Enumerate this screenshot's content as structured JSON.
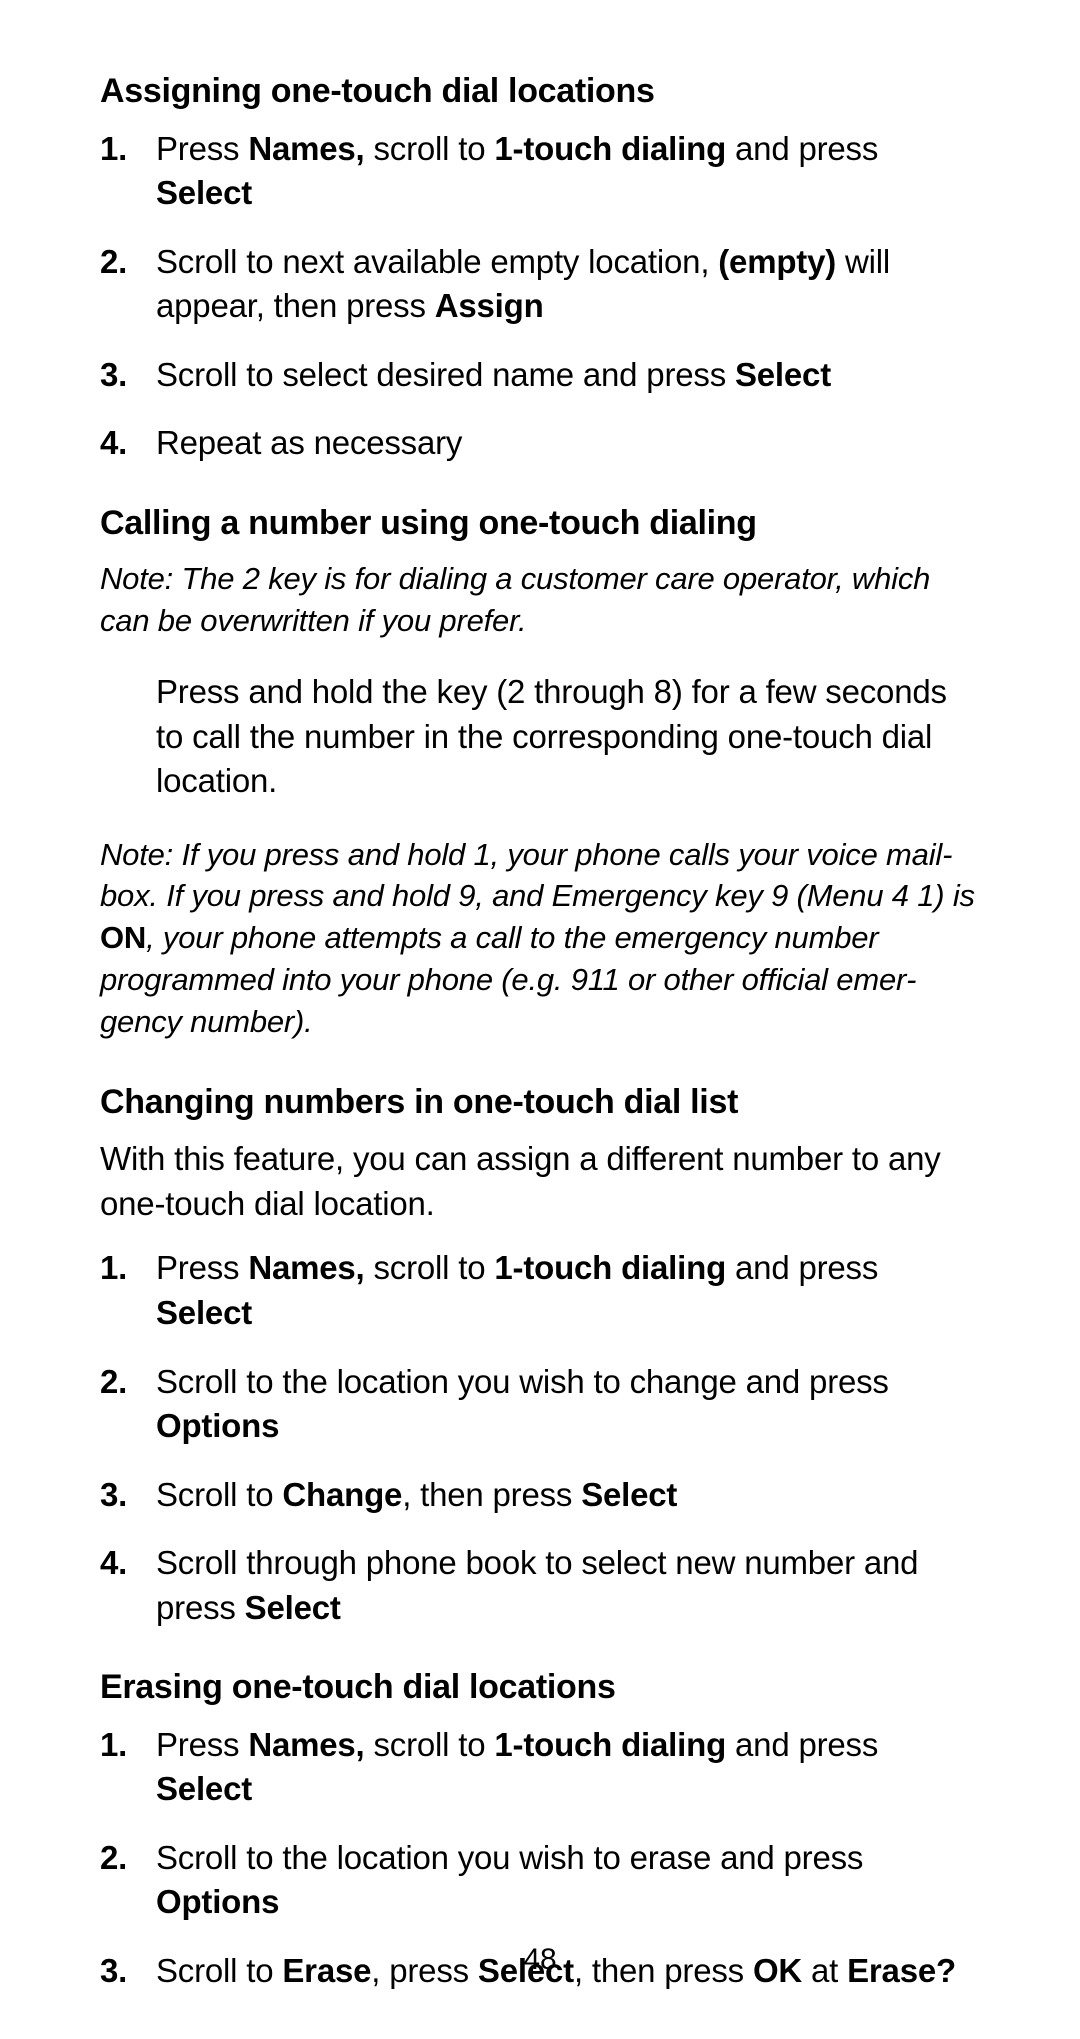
{
  "page_number": "48",
  "sections": [
    {
      "heading": "Assigning one-touch dial locations",
      "steps": [
        {
          "num": "1.",
          "runs": [
            {
              "t": "Press "
            },
            {
              "t": "Names,",
              "b": true
            },
            {
              "t": " scroll to "
            },
            {
              "t": "1-touch dialing",
              "b": true
            },
            {
              "t": " and press "
            },
            {
              "t": "Select",
              "b": true
            }
          ]
        },
        {
          "num": "2.",
          "runs": [
            {
              "t": "Scroll to next available empty location, "
            },
            {
              "t": "(empty)",
              "b": true
            },
            {
              "t": " will appear, then press "
            },
            {
              "t": "Assign",
              "b": true
            }
          ]
        },
        {
          "num": "3.",
          "runs": [
            {
              "t": "Scroll to select desired name and press "
            },
            {
              "t": "Select",
              "b": true
            }
          ]
        },
        {
          "num": "4.",
          "runs": [
            {
              "t": "Repeat as necessary"
            }
          ]
        }
      ]
    },
    {
      "heading": "Calling a number using one-touch dialing",
      "note1_runs": [
        {
          "t": "Note: The 2 key is for dialing a customer care operator, which can be overwritten if you prefer."
        }
      ],
      "indent_para": "Press and hold the key (2 through 8) for a few seconds to call the number in the corresponding one-touch dial location.",
      "note2_runs": [
        {
          "t": "Note: If you press and hold 1, your phone calls your voice mail­box. If you press and hold 9, and Emergency key 9 (Menu 4 1) is "
        },
        {
          "t": "ON",
          "b": true
        },
        {
          "t": ", your phone attempts a call to the emergency number programmed into your phone (e.g. 911 or other official emer­gency number)."
        }
      ]
    },
    {
      "heading": "Changing numbers in one-touch dial list",
      "body": "With this feature, you can assign a different number to any one-touch dial location.",
      "steps": [
        {
          "num": "1.",
          "runs": [
            {
              "t": "Press "
            },
            {
              "t": "Names,",
              "b": true
            },
            {
              "t": " scroll to "
            },
            {
              "t": "1-touch dialing",
              "b": true
            },
            {
              "t": " and press "
            },
            {
              "t": "Select",
              "b": true
            }
          ]
        },
        {
          "num": "2.",
          "runs": [
            {
              "t": "Scroll to the location you wish to change and press "
            },
            {
              "t": "Options",
              "b": true
            }
          ]
        },
        {
          "num": "3.",
          "runs": [
            {
              "t": "Scroll to "
            },
            {
              "t": "Change",
              "b": true
            },
            {
              "t": ", then press "
            },
            {
              "t": "Select",
              "b": true
            }
          ]
        },
        {
          "num": "4.",
          "runs": [
            {
              "t": "Scroll through phone book to select new number and press "
            },
            {
              "t": "Select",
              "b": true
            }
          ]
        }
      ]
    },
    {
      "heading": "Erasing one-touch dial locations",
      "steps": [
        {
          "num": "1.",
          "runs": [
            {
              "t": "Press "
            },
            {
              "t": "Names, ",
              "b": true
            },
            {
              "t": "scroll to "
            },
            {
              "t": "1-touch dialing",
              "b": true
            },
            {
              "t": " and press "
            },
            {
              "t": "Select",
              "b": true
            }
          ]
        },
        {
          "num": "2.",
          "runs": [
            {
              "t": "Scroll to the location you wish to erase and press "
            },
            {
              "t": "Options",
              "b": true
            }
          ]
        },
        {
          "num": "3.",
          "runs": [
            {
              "t": "Scroll to "
            },
            {
              "t": "Erase",
              "b": true
            },
            {
              "t": ", press "
            },
            {
              "t": "Select",
              "b": true
            },
            {
              "t": ", then press "
            },
            {
              "t": "OK",
              "b": true
            },
            {
              "t": " at "
            },
            {
              "t": "Erase?",
              "b": true
            }
          ]
        }
      ]
    }
  ]
}
